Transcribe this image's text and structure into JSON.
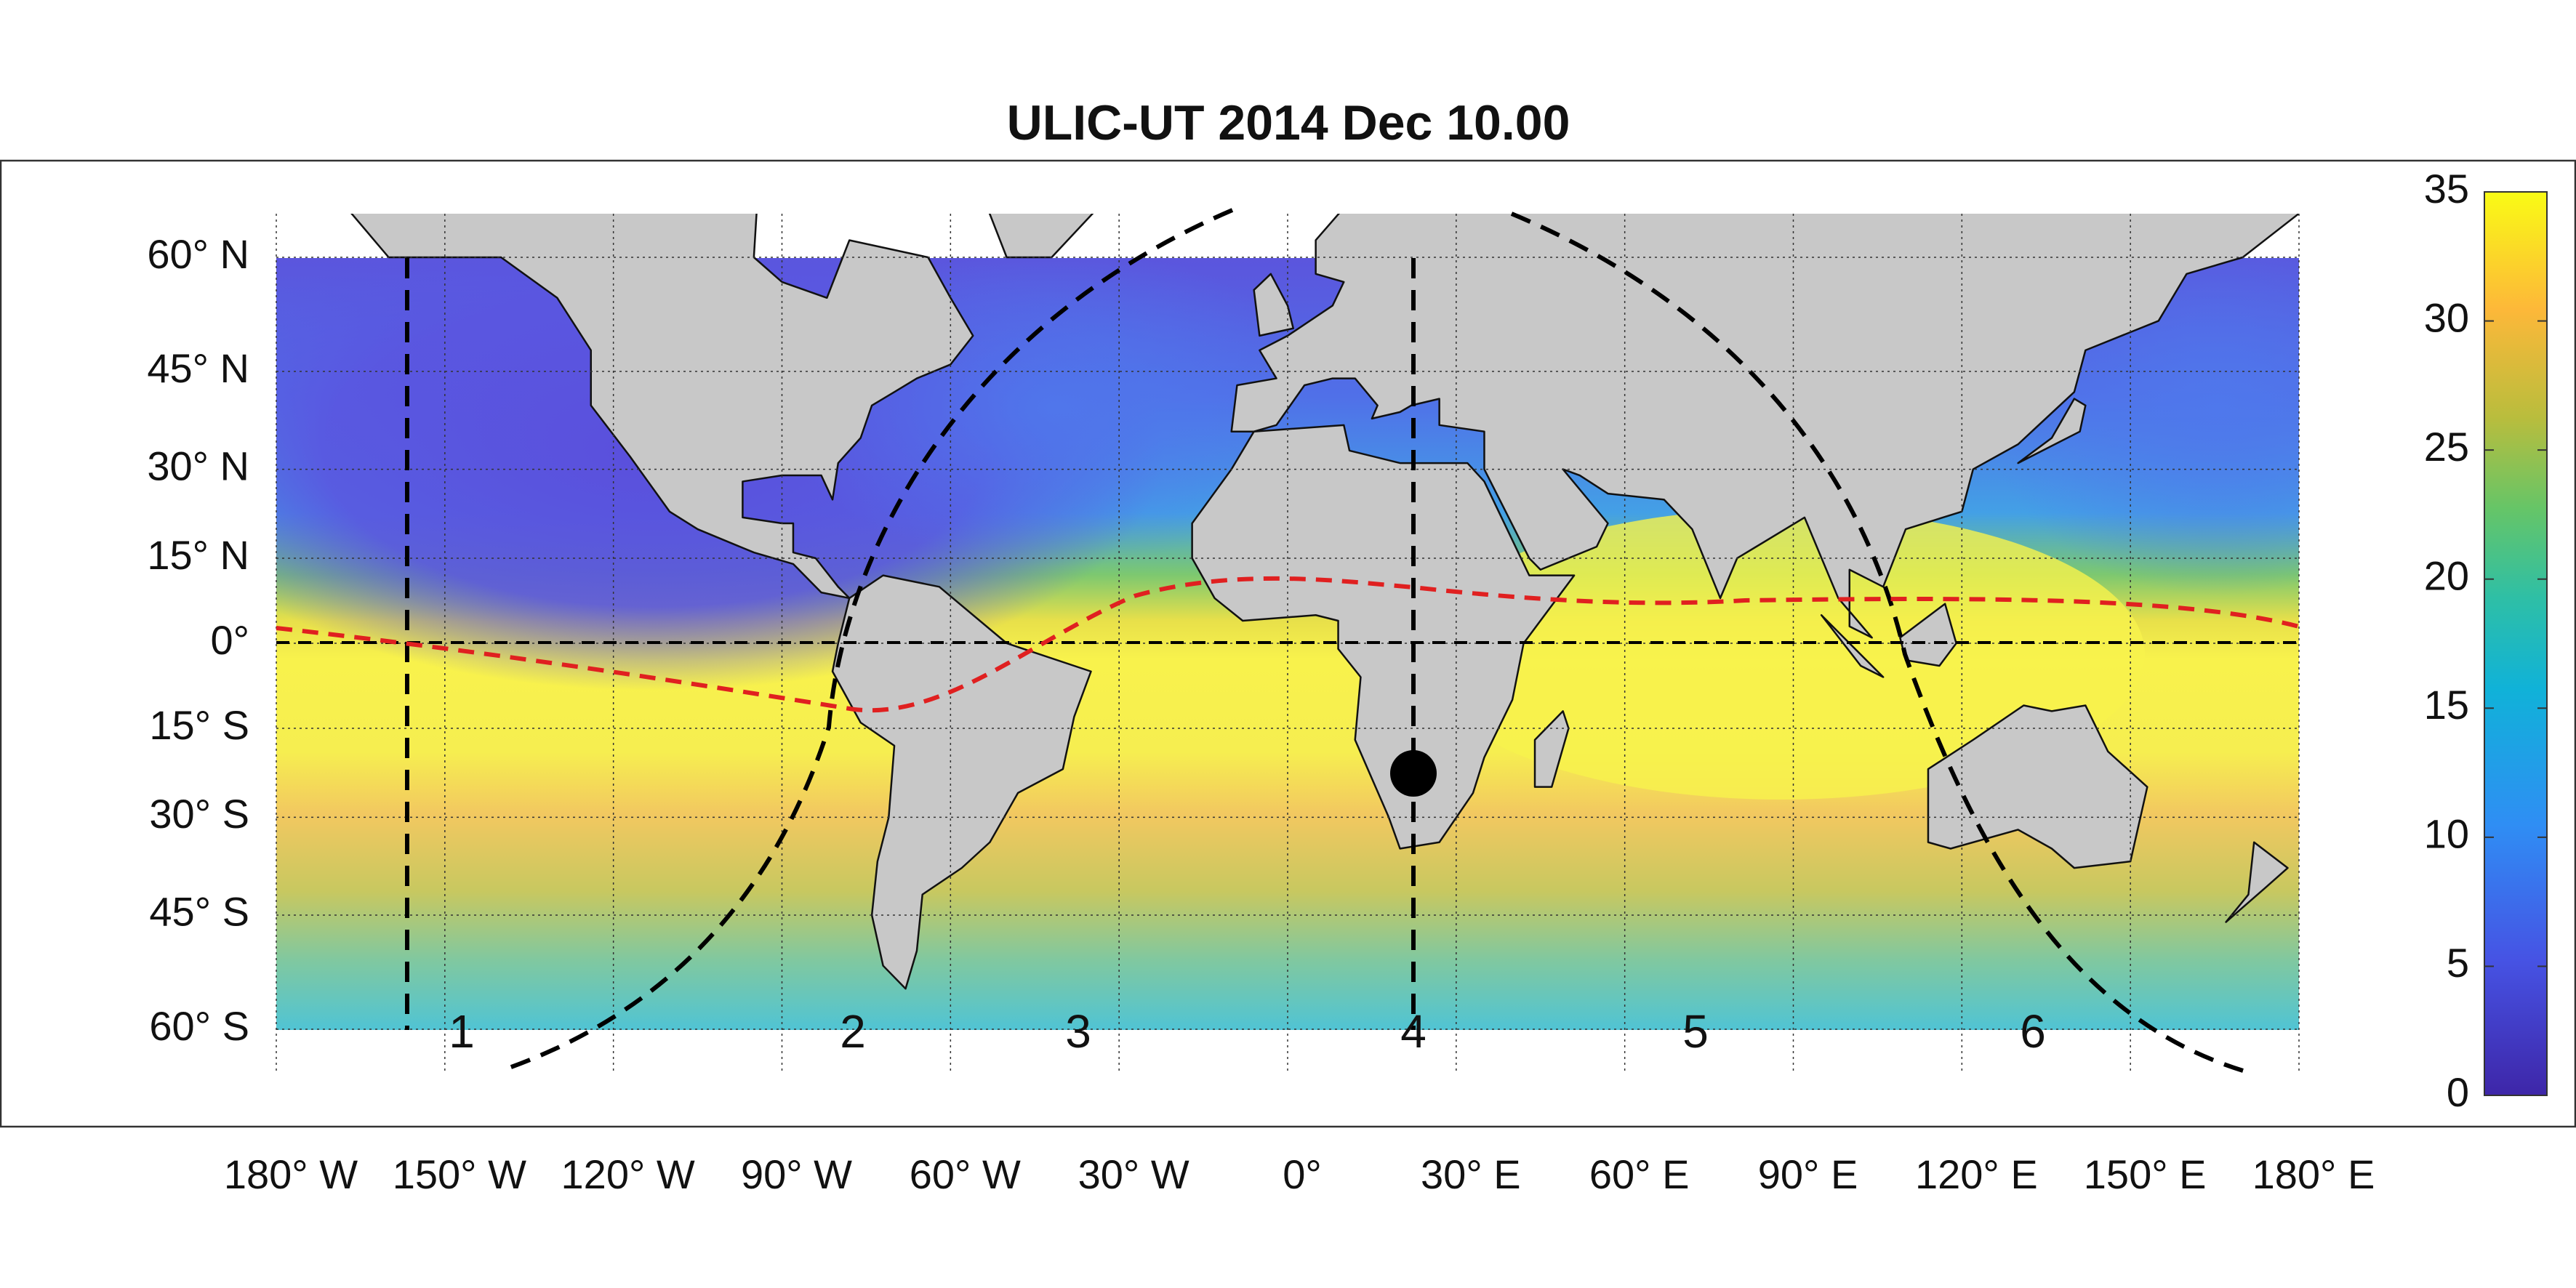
{
  "title": "ULIC-UT 2014 Dec 10.00",
  "map": {
    "lon_ticks": [
      {
        "value": -180,
        "label": "180° W"
      },
      {
        "value": -150,
        "label": "150° W"
      },
      {
        "value": -120,
        "label": "120° W"
      },
      {
        "value": -90,
        "label": "90° W"
      },
      {
        "value": -60,
        "label": "60° W"
      },
      {
        "value": -30,
        "label": "30° W"
      },
      {
        "value": 0,
        "label": "0°"
      },
      {
        "value": 30,
        "label": "30° E"
      },
      {
        "value": 60,
        "label": "60° E"
      },
      {
        "value": 90,
        "label": "90° E"
      },
      {
        "value": 120,
        "label": "120° E"
      },
      {
        "value": 150,
        "label": "150° E"
      },
      {
        "value": 180,
        "label": "180° E"
      }
    ],
    "lat_ticks": [
      {
        "value": 60,
        "label": "60° N"
      },
      {
        "value": 45,
        "label": "45° N"
      },
      {
        "value": 30,
        "label": "30° N"
      },
      {
        "value": 15,
        "label": "15° N"
      },
      {
        "value": 0,
        "label": "0°"
      },
      {
        "value": -15,
        "label": "15° S"
      },
      {
        "value": -30,
        "label": "30° S"
      },
      {
        "value": -45,
        "label": "45° S"
      },
      {
        "value": -60,
        "label": "60° S"
      }
    ],
    "region_labels": [
      "1",
      "2",
      "3",
      "4",
      "5",
      "6"
    ]
  },
  "colorbar": {
    "lim": [
      0,
      35
    ],
    "ticks": [
      0,
      5,
      10,
      15,
      20,
      25,
      30,
      35
    ]
  }
}
